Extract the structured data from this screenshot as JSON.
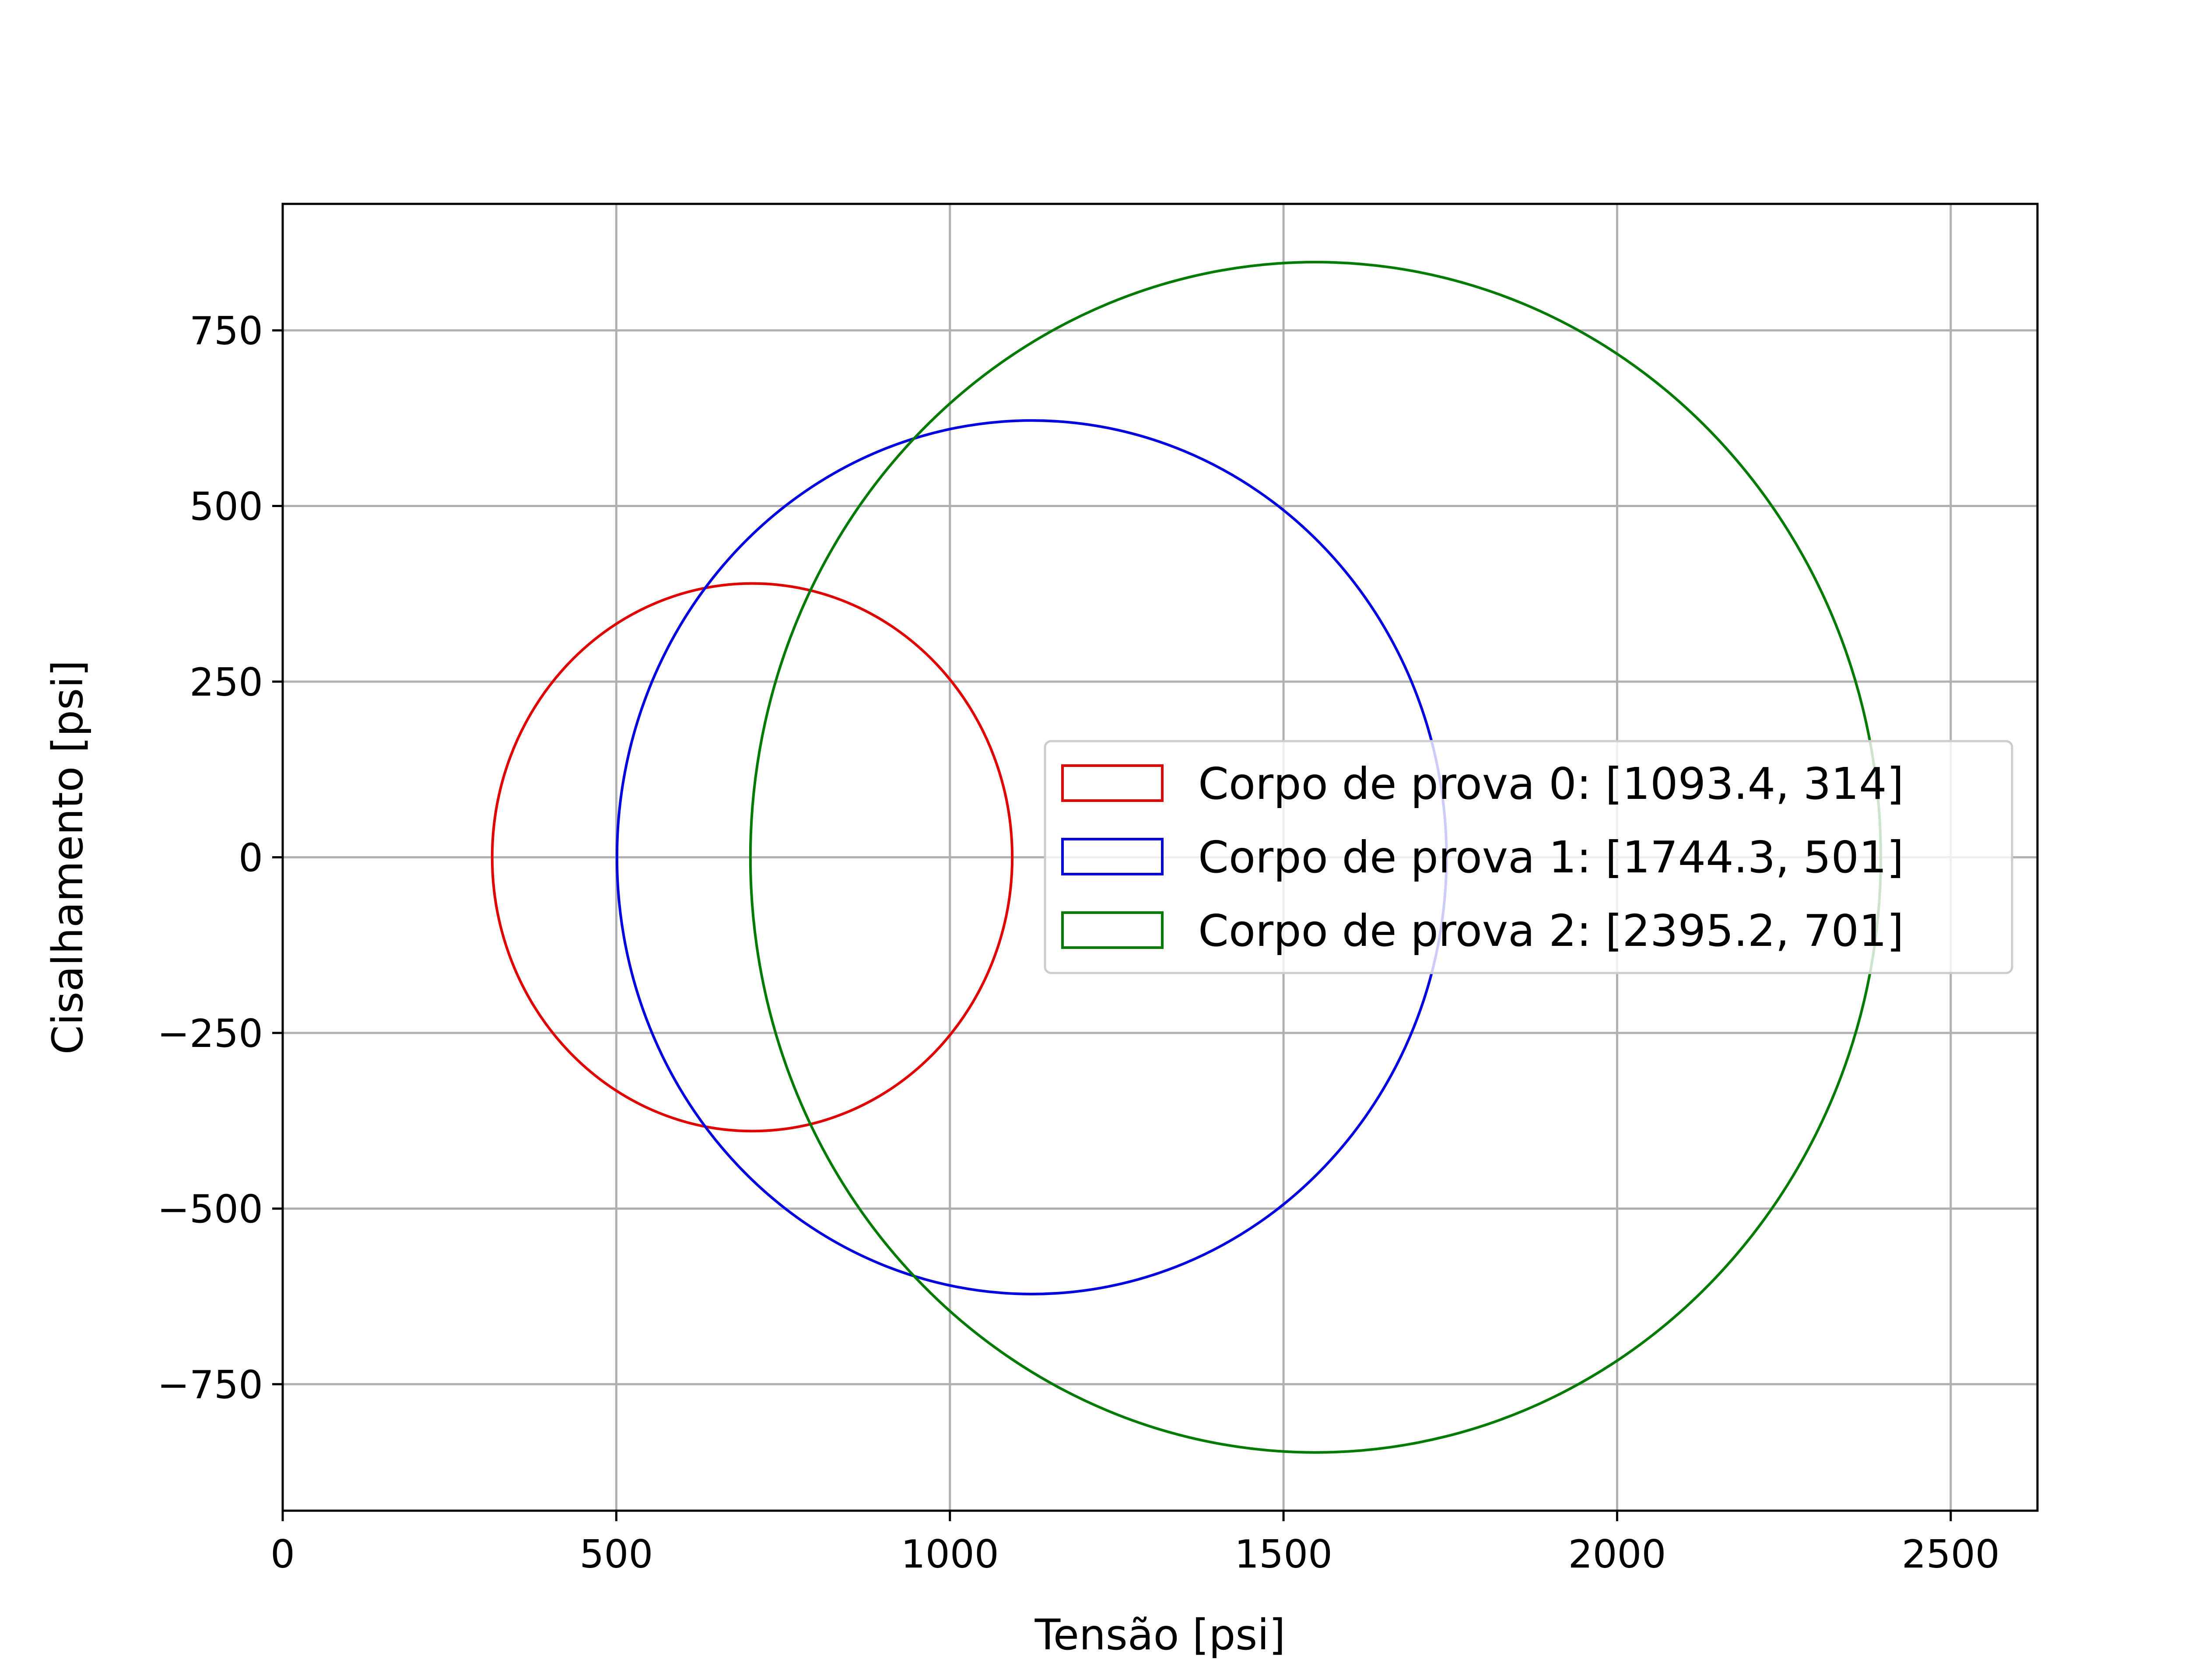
{
  "chart_data": {
    "type": "circle",
    "title": "",
    "xlabel": "Tensão [psi]",
    "ylabel": "Cisalhamento [psi]",
    "xlim": [
      0,
      2630
    ],
    "ylim": [
      -930,
      930
    ],
    "xticks": [
      0,
      500,
      1000,
      1500,
      2000,
      2500
    ],
    "yticks": [
      -750,
      -500,
      -250,
      0,
      250,
      500,
      750
    ],
    "xtick_labels": [
      "0",
      "500",
      "1000",
      "1500",
      "2000",
      "2500"
    ],
    "ytick_labels": [
      "−750",
      "−500",
      "−250",
      "0",
      "250",
      "500",
      "750"
    ],
    "grid": true,
    "legend_position": "center-right",
    "series": [
      {
        "name": "Corpo de prova 0: [1093.4, 314]",
        "color": "#e00000",
        "center": [
          703.7,
          0
        ],
        "radius": 389.7,
        "sigma": [
          314,
          1093.4
        ]
      },
      {
        "name": "Corpo de prova 1: [1744.3, 501]",
        "color": "#0000e0",
        "center": [
          1122.65,
          0
        ],
        "radius": 621.65,
        "sigma": [
          501,
          1744.3
        ]
      },
      {
        "name": "Corpo de prova 2: [2395.2, 701]",
        "color": "#007a00",
        "center": [
          1548.1,
          0
        ],
        "radius": 847.1,
        "sigma": [
          701,
          2395.2
        ]
      }
    ]
  }
}
